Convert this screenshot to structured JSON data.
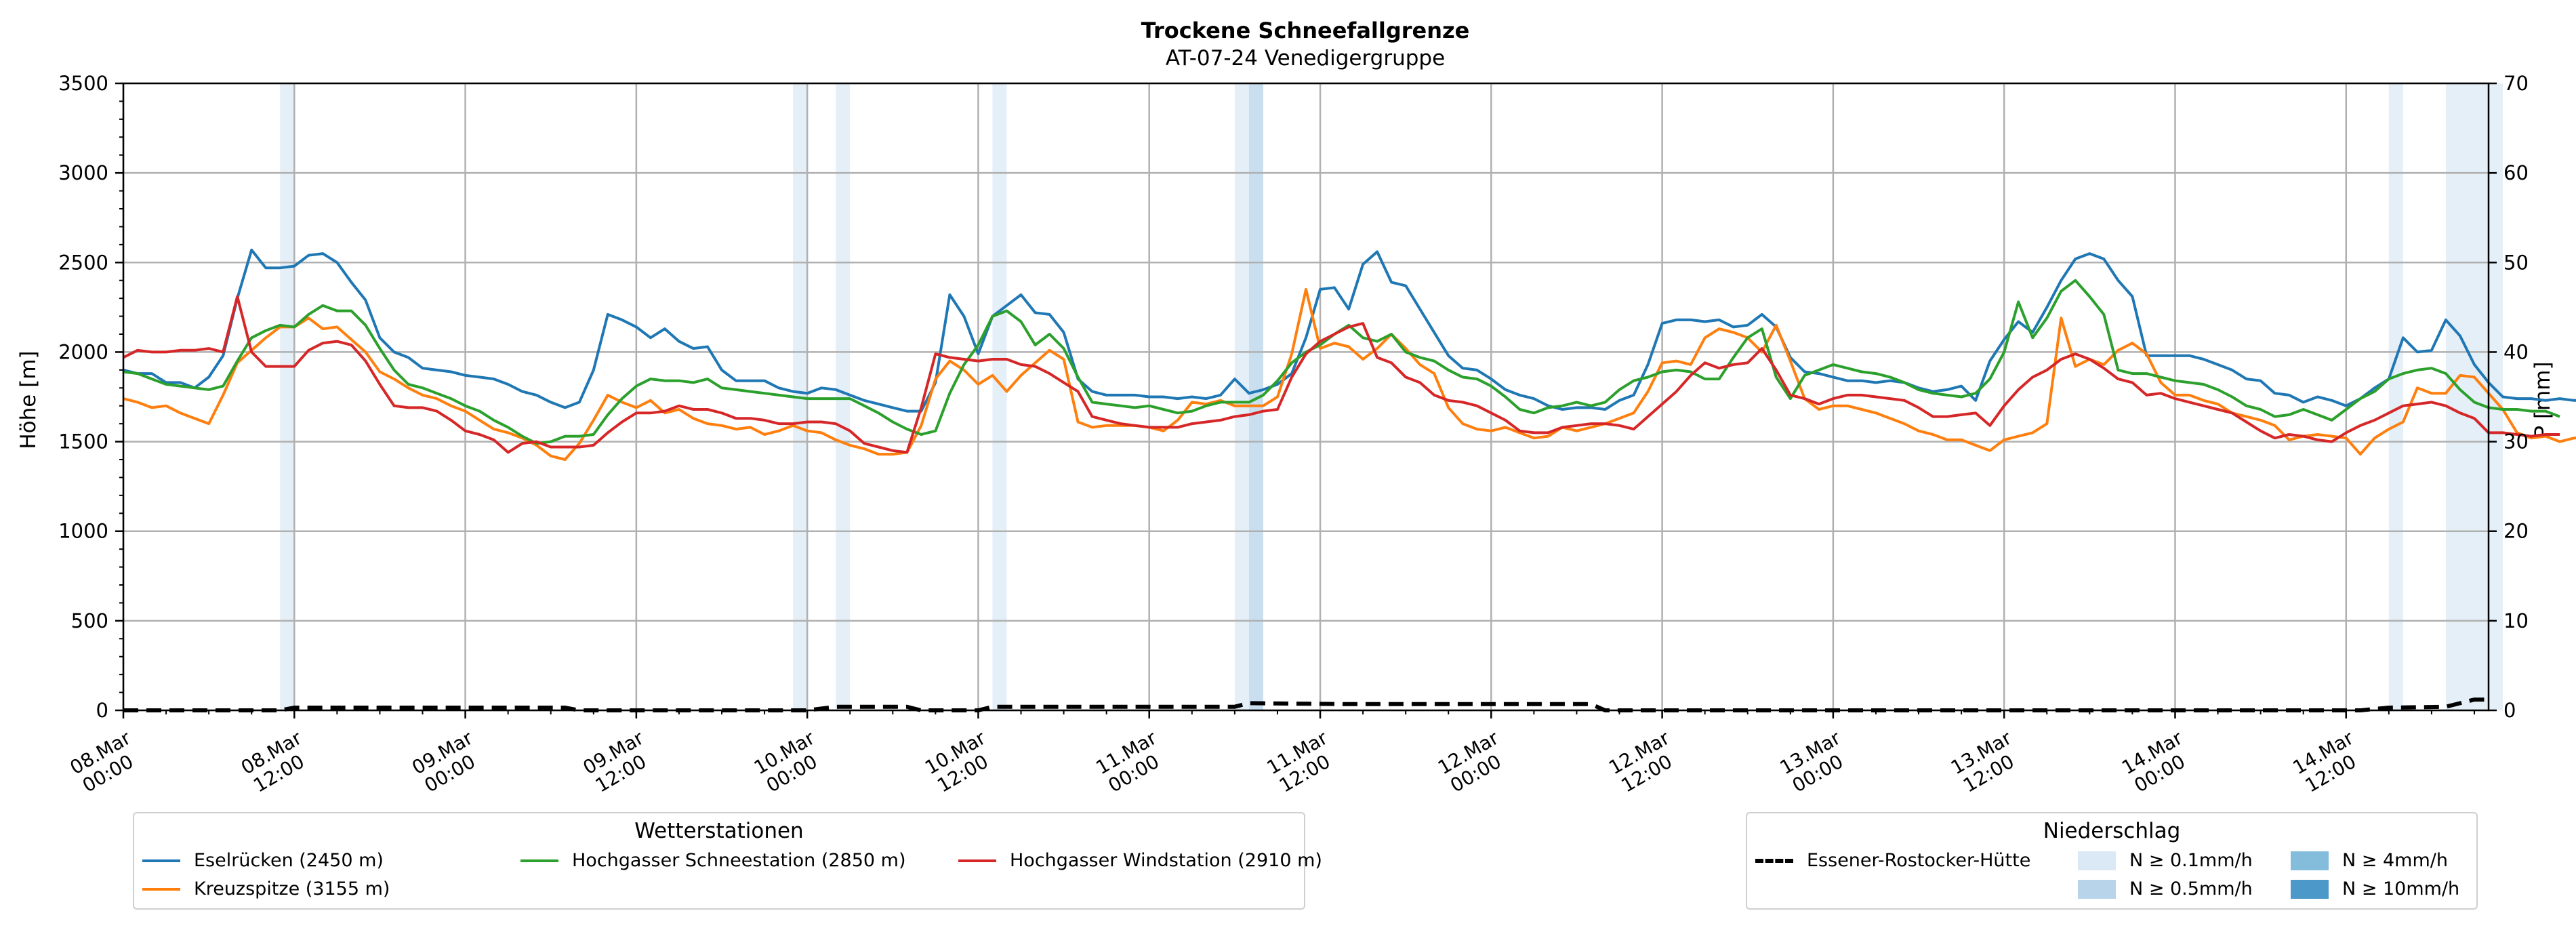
{
  "chart_data": {
    "type": "line",
    "title": "Trockene Schneefallgrenze",
    "subtitle": "AT-07-24 Venedigergruppe",
    "ylabel": "Höhe [m]",
    "ylabel_right": "P [mm]",
    "ylim": [
      0,
      3500
    ],
    "ylim_right": [
      0,
      70
    ],
    "yticks": [
      0,
      500,
      1000,
      1500,
      2000,
      2500,
      3000,
      3500
    ],
    "yticks_right": [
      0,
      10,
      20,
      30,
      40,
      50,
      60,
      70
    ],
    "x_start": "2024-03-08 00:00",
    "x_end": "2024-03-14 22:00",
    "x_step_hours": 1,
    "xticks": [
      {
        "time": "2024-03-08 00:00",
        "line1": "08.Mar",
        "line2": "00:00"
      },
      {
        "time": "2024-03-08 12:00",
        "line1": "08.Mar",
        "line2": "12:00"
      },
      {
        "time": "2024-03-09 00:00",
        "line1": "09.Mar",
        "line2": "00:00"
      },
      {
        "time": "2024-03-09 12:00",
        "line1": "09.Mar",
        "line2": "12:00"
      },
      {
        "time": "2024-03-10 00:00",
        "line1": "10.Mar",
        "line2": "00:00"
      },
      {
        "time": "2024-03-10 12:00",
        "line1": "10.Mar",
        "line2": "12:00"
      },
      {
        "time": "2024-03-11 00:00",
        "line1": "11.Mar",
        "line2": "00:00"
      },
      {
        "time": "2024-03-11 12:00",
        "line1": "11.Mar",
        "line2": "12:00"
      },
      {
        "time": "2024-03-12 00:00",
        "line1": "12.Mar",
        "line2": "00:00"
      },
      {
        "time": "2024-03-12 12:00",
        "line1": "12.Mar",
        "line2": "12:00"
      },
      {
        "time": "2024-03-13 00:00",
        "line1": "13.Mar",
        "line2": "00:00"
      },
      {
        "time": "2024-03-13 12:00",
        "line1": "13.Mar",
        "line2": "12:00"
      },
      {
        "time": "2024-03-14 00:00",
        "line1": "14.Mar",
        "line2": "00:00"
      },
      {
        "time": "2024-03-14 12:00",
        "line1": "14.Mar",
        "line2": "12:00"
      }
    ],
    "grid": true,
    "legend_stations_title": "Wetterstationen",
    "legend_precip_title": "Niederschlag",
    "legend_stations_placement": "bottom-left",
    "legend_precip_placement": "bottom-right",
    "series": [
      {
        "name": "Eselrücken (2450 m)",
        "color": "#1f77b4",
        "values": [
          1900,
          1880,
          1880,
          1830,
          1830,
          1800,
          1860,
          1980,
          2300,
          2570,
          2470,
          2470,
          2480,
          2540,
          2550,
          2500,
          2390,
          2290,
          2080,
          2000,
          1970,
          1910,
          1900,
          1890,
          1870,
          1860,
          1850,
          1820,
          1780,
          1760,
          1720,
          1690,
          1720,
          1900,
          2210,
          2180,
          2140,
          2080,
          2130,
          2060,
          2020,
          2030,
          1900,
          1840,
          1840,
          1840,
          1800,
          1780,
          1770,
          1800,
          1790,
          1760,
          1730,
          1710,
          1690,
          1670,
          1670,
          1830,
          2320,
          2200,
          1990,
          2200,
          2260,
          2320,
          2220,
          2210,
          2110,
          1850,
          1780,
          1760,
          1760,
          1760,
          1750,
          1750,
          1740,
          1750,
          1740,
          1760,
          1850,
          1770,
          1790,
          1820,
          1880,
          2080,
          2350,
          2360,
          2240,
          2490,
          2560,
          2390,
          2370,
          2240,
          2110,
          1980,
          1910,
          1900,
          1850,
          1790,
          1760,
          1740,
          1700,
          1680,
          1690,
          1690,
          1680,
          1730,
          1760,
          1930,
          2160,
          2180,
          2180,
          2170,
          2180,
          2140,
          2150,
          2210,
          2140,
          1970,
          1890,
          1880,
          1860,
          1840,
          1840,
          1830,
          1840,
          1830,
          1800,
          1780,
          1790,
          1810,
          1730,
          1950,
          2070,
          2170,
          2110,
          2250,
          2400,
          2520,
          2550,
          2520,
          2400,
          2310,
          1980,
          1980,
          1980,
          1980,
          1960,
          1930,
          1900,
          1850,
          1840,
          1770,
          1760,
          1720,
          1750,
          1730,
          1700,
          1740,
          1800,
          1850,
          2080,
          2000,
          2010,
          2180,
          2090,
          1930,
          1830,
          1750,
          1740,
          1740,
          1730,
          1740,
          1730,
          1730
        ]
      },
      {
        "name": "Kreuzspitze (3155 m)",
        "color": "#ff7f0e",
        "values": [
          1740,
          1720,
          1690,
          1700,
          1660,
          1630,
          1600,
          1760,
          1940,
          2010,
          2080,
          2140,
          2140,
          2190,
          2130,
          2140,
          2070,
          2000,
          1890,
          1850,
          1800,
          1760,
          1740,
          1700,
          1670,
          1620,
          1570,
          1550,
          1520,
          1480,
          1420,
          1400,
          1490,
          1620,
          1760,
          1720,
          1690,
          1730,
          1660,
          1680,
          1630,
          1600,
          1590,
          1570,
          1580,
          1540,
          1560,
          1590,
          1560,
          1550,
          1510,
          1480,
          1460,
          1430,
          1430,
          1440,
          1590,
          1850,
          1950,
          1900,
          1820,
          1870,
          1780,
          1870,
          1940,
          2010,
          1960,
          1610,
          1580,
          1590,
          1590,
          1590,
          1580,
          1560,
          1620,
          1720,
          1710,
          1730,
          1700,
          1700,
          1700,
          1750,
          1990,
          2350,
          2020,
          2050,
          2030,
          1960,
          2020,
          2100,
          2020,
          1930,
          1880,
          1690,
          1600,
          1570,
          1560,
          1580,
          1550,
          1520,
          1530,
          1580,
          1560,
          1580,
          1600,
          1630,
          1660,
          1780,
          1940,
          1950,
          1930,
          2080,
          2130,
          2110,
          2080,
          2000,
          2150,
          1950,
          1740,
          1680,
          1700,
          1700,
          1680,
          1660,
          1630,
          1600,
          1560,
          1540,
          1510,
          1510,
          1480,
          1450,
          1510,
          1530,
          1550,
          1600,
          2190,
          1920,
          1960,
          1930,
          2010,
          2050,
          1990,
          1830,
          1760,
          1760,
          1730,
          1710,
          1660,
          1640,
          1620,
          1590,
          1510,
          1530,
          1540,
          1530,
          1520,
          1430,
          1520,
          1570,
          1610,
          1800,
          1770,
          1770,
          1870,
          1860,
          1770,
          1680,
          1550,
          1520,
          1530,
          1500,
          1520,
          1520
        ]
      },
      {
        "name": "Hochgasser Schneestation (2850 m)",
        "color": "#2ca02c",
        "values": [
          1890,
          1880,
          1850,
          1820,
          1810,
          1800,
          1790,
          1810,
          1950,
          2080,
          2120,
          2150,
          2140,
          2210,
          2260,
          2230,
          2230,
          2150,
          2020,
          1900,
          1820,
          1800,
          1770,
          1740,
          1700,
          1670,
          1620,
          1580,
          1530,
          1490,
          1500,
          1530,
          1530,
          1540,
          1650,
          1740,
          1810,
          1850,
          1840,
          1840,
          1830,
          1850,
          1800,
          1790,
          1780,
          1770,
          1760,
          1750,
          1740,
          1740,
          1740,
          1740,
          1700,
          1660,
          1610,
          1570,
          1540,
          1560,
          1770,
          1930,
          2040,
          2200,
          2230,
          2170,
          2040,
          2100,
          2020,
          1860,
          1720,
          1710,
          1700,
          1690,
          1700,
          1680,
          1660,
          1670,
          1700,
          1720,
          1720,
          1720,
          1760,
          1840,
          1940,
          2000,
          2040,
          2100,
          2150,
          2080,
          2060,
          2100,
          2000,
          1970,
          1950,
          1900,
          1860,
          1850,
          1810,
          1750,
          1680,
          1660,
          1690,
          1700,
          1720,
          1700,
          1720,
          1790,
          1840,
          1860,
          1890,
          1900,
          1890,
          1850,
          1850,
          1970,
          2080,
          2130,
          1860,
          1740,
          1870,
          1900,
          1930,
          1910,
          1890,
          1880,
          1860,
          1830,
          1790,
          1770,
          1760,
          1750,
          1770,
          1850,
          2000,
          2280,
          2080,
          2190,
          2340,
          2400,
          2310,
          2210,
          1900,
          1880,
          1880,
          1860,
          1840,
          1830,
          1820,
          1790,
          1750,
          1700,
          1680,
          1640,
          1650,
          1680,
          1650,
          1620,
          1680,
          1740,
          1780,
          1850,
          1880,
          1900,
          1910,
          1880,
          1790,
          1720,
          1690,
          1680,
          1680,
          1670,
          1670,
          1640
        ]
      },
      {
        "name": "Hochgasser Windstation (2910 m)",
        "color": "#d62728",
        "values": [
          1970,
          2010,
          2000,
          2000,
          2010,
          2010,
          2020,
          2000,
          2310,
          2000,
          1920,
          1920,
          1920,
          2010,
          2050,
          2060,
          2040,
          1950,
          1820,
          1700,
          1690,
          1690,
          1670,
          1620,
          1560,
          1540,
          1510,
          1440,
          1490,
          1500,
          1470,
          1470,
          1470,
          1480,
          1550,
          1610,
          1660,
          1660,
          1670,
          1700,
          1680,
          1680,
          1660,
          1630,
          1630,
          1620,
          1600,
          1600,
          1610,
          1610,
          1600,
          1560,
          1490,
          1470,
          1450,
          1440,
          1690,
          1990,
          1970,
          1960,
          1950,
          1960,
          1960,
          1930,
          1920,
          1880,
          1830,
          1780,
          1640,
          1620,
          1600,
          1590,
          1580,
          1580,
          1580,
          1600,
          1610,
          1620,
          1640,
          1650,
          1670,
          1680,
          1860,
          1990,
          2060,
          2100,
          2140,
          2160,
          1970,
          1940,
          1860,
          1830,
          1760,
          1730,
          1720,
          1700,
          1660,
          1620,
          1560,
          1550,
          1550,
          1580,
          1590,
          1600,
          1600,
          1590,
          1570,
          1640,
          1710,
          1780,
          1870,
          1940,
          1910,
          1930,
          1940,
          2020,
          1900,
          1760,
          1740,
          1710,
          1740,
          1760,
          1760,
          1750,
          1740,
          1730,
          1690,
          1640,
          1640,
          1650,
          1660,
          1590,
          1700,
          1790,
          1860,
          1900,
          1960,
          1990,
          1960,
          1910,
          1850,
          1830,
          1760,
          1770,
          1740,
          1720,
          1700,
          1680,
          1660,
          1610,
          1560,
          1520,
          1540,
          1530,
          1510,
          1500,
          1550,
          1590,
          1620,
          1660,
          1700,
          1710,
          1720,
          1700,
          1660,
          1630,
          1550,
          1550,
          1540,
          1530,
          1540,
          1540
        ]
      }
    ],
    "precip_station": {
      "name": "Essener-Rostocker-Hütte",
      "style": "dashed",
      "color": "#000000",
      "points": [
        {
          "t": 0,
          "v": 0
        },
        {
          "t": 11,
          "v": 0
        },
        {
          "t": 12,
          "v": 0.3
        },
        {
          "t": 31,
          "v": 0.3
        },
        {
          "t": 32,
          "v": 0
        },
        {
          "t": 48,
          "v": 0
        },
        {
          "t": 50,
          "v": 0.4
        },
        {
          "t": 55,
          "v": 0.4
        },
        {
          "t": 56,
          "v": 0
        },
        {
          "t": 60,
          "v": 0
        },
        {
          "t": 61,
          "v": 0.4
        },
        {
          "t": 78,
          "v": 0.4
        },
        {
          "t": 79,
          "v": 0.8
        },
        {
          "t": 86,
          "v": 0.7
        },
        {
          "t": 103,
          "v": 0.7
        },
        {
          "t": 104,
          "v": 0
        },
        {
          "t": 157,
          "v": 0
        },
        {
          "t": 159,
          "v": 0.3
        },
        {
          "t": 163,
          "v": 0.4
        },
        {
          "t": 165,
          "v": 1.2
        },
        {
          "t": 166,
          "v": 1.2
        }
      ]
    },
    "precip_bands": [
      {
        "t_start": 11.0,
        "t_end": 12.0,
        "level": "N ≥ 0.1mm/h"
      },
      {
        "t_start": 47.0,
        "t_end": 48.0,
        "level": "N ≥ 0.1mm/h"
      },
      {
        "t_start": 50.0,
        "t_end": 51.0,
        "level": "N ≥ 0.1mm/h"
      },
      {
        "t_start": 61.0,
        "t_end": 62.0,
        "level": "N ≥ 0.1mm/h"
      },
      {
        "t_start": 78.0,
        "t_end": 79.0,
        "level": "N ≥ 0.1mm/h"
      },
      {
        "t_start": 79.0,
        "t_end": 80.0,
        "level": "N ≥ 0.5mm/h"
      },
      {
        "t_start": 159.0,
        "t_end": 160.0,
        "level": "N ≥ 0.1mm/h"
      },
      {
        "t_start": 163.0,
        "t_end": 167.0,
        "level": "N ≥ 0.1mm/h"
      }
    ],
    "precip_levels": [
      {
        "label": "N ≥ 0.1mm/h",
        "color": "#dbe9f6"
      },
      {
        "label": "N ≥ 0.5mm/h",
        "color": "#b7d4ea"
      },
      {
        "label": "N ≥ 4mm/h",
        "color": "#84bcdb"
      },
      {
        "label": "N ≥ 10mm/h",
        "color": "#4b98c9"
      }
    ]
  }
}
